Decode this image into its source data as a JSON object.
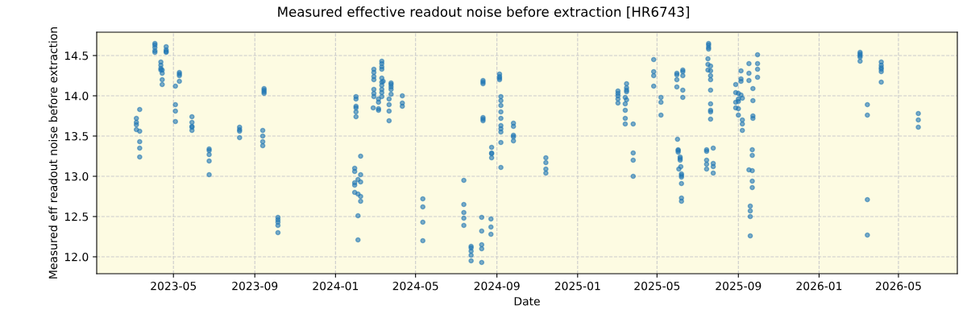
{
  "chart_data": {
    "type": "scatter",
    "title": "Measured effective readout noise before extraction [HR6743]",
    "xlabel": "Date",
    "ylabel": "Measured eff readout noise before extraction",
    "xlim": [
      "2023-01-05",
      "2026-07-29"
    ],
    "ylim": [
      11.79,
      14.79
    ],
    "xticks": [
      "2023-05",
      "2023-09",
      "2024-01",
      "2024-05",
      "2024-09",
      "2025-01",
      "2025-05",
      "2025-09",
      "2026-01",
      "2026-05"
    ],
    "yticks": [
      {
        "value": 12,
        "label": "12.0"
      },
      {
        "value": 12.5,
        "label": "12.5"
      },
      {
        "value": 13,
        "label": "13.0"
      },
      {
        "value": 13.5,
        "label": "13.5"
      },
      {
        "value": 14,
        "label": "14.0"
      },
      {
        "value": 14.5,
        "label": "14.5"
      }
    ],
    "grid": true,
    "marker": "circle",
    "series": [
      {
        "color": "#1f77b4",
        "x": [
          "2023-03-06",
          "2023-03-06",
          "2023-03-06",
          "2023-03-06",
          "2023-03-11",
          "2023-03-11",
          "2023-03-11",
          "2023-03-11",
          "2023-03-11",
          "2023-04-03",
          "2023-04-03",
          "2023-04-03",
          "2023-04-03",
          "2023-04-03",
          "2023-04-12",
          "2023-04-12",
          "2023-04-12",
          "2023-04-12",
          "2023-04-14",
          "2023-04-14",
          "2023-04-14",
          "2023-04-14",
          "2023-04-20",
          "2023-04-20",
          "2023-04-20",
          "2023-04-20",
          "2023-05-04",
          "2023-05-04",
          "2023-05-04",
          "2023-05-04",
          "2023-05-10",
          "2023-05-10",
          "2023-05-10",
          "2023-05-10",
          "2023-05-29",
          "2023-05-29",
          "2023-05-29",
          "2023-05-29",
          "2023-05-29",
          "2023-06-24",
          "2023-06-24",
          "2023-06-24",
          "2023-06-24",
          "2023-06-24",
          "2023-08-09",
          "2023-08-09",
          "2023-08-09",
          "2023-08-09",
          "2023-09-13",
          "2023-09-13",
          "2023-09-13",
          "2023-09-13",
          "2023-09-15",
          "2023-09-15",
          "2023-09-15",
          "2023-09-15",
          "2023-10-06",
          "2023-10-06",
          "2023-10-06",
          "2023-10-06",
          "2023-10-06",
          "2024-02-01",
          "2024-02-01",
          "2024-02-01",
          "2024-02-01",
          "2024-02-01",
          "2024-02-01",
          "2024-01-30",
          "2024-01-30",
          "2024-01-30",
          "2024-01-30",
          "2024-01-30",
          "2024-02-08",
          "2024-02-08",
          "2024-02-04",
          "2024-02-08",
          "2024-02-04",
          "2024-02-08",
          "2024-02-08",
          "2024-02-04",
          "2024-02-04",
          "2024-02-28",
          "2024-02-28",
          "2024-02-28",
          "2024-02-28",
          "2024-02-28",
          "2024-02-28",
          "2024-02-28",
          "2024-02-27",
          "2024-03-06",
          "2024-03-06",
          "2024-03-06",
          "2024-03-06",
          "2024-03-11",
          "2024-03-11",
          "2024-03-11",
          "2024-03-11",
          "2024-03-11",
          "2024-03-11",
          "2024-03-11",
          "2024-03-11",
          "2024-03-11",
          "2024-03-11",
          "2024-03-13",
          "2024-03-22",
          "2024-03-22",
          "2024-03-22",
          "2024-03-22",
          "2024-03-25",
          "2024-03-25",
          "2024-03-25",
          "2024-03-25",
          "2024-03-25",
          "2024-04-11",
          "2024-04-11",
          "2024-04-11",
          "2024-05-12",
          "2024-05-12",
          "2024-05-12",
          "2024-05-12",
          "2024-07-13",
          "2024-07-13",
          "2024-07-13",
          "2024-07-13",
          "2024-07-13",
          "2024-07-24",
          "2024-07-24",
          "2024-07-24",
          "2024-07-24",
          "2024-07-24",
          "2024-08-09",
          "2024-08-09",
          "2024-08-09",
          "2024-08-09",
          "2024-08-09",
          "2024-08-11",
          "2024-08-11",
          "2024-08-11",
          "2024-08-11",
          "2024-08-11",
          "2024-08-11",
          "2024-08-23",
          "2024-08-23",
          "2024-08-23",
          "2024-08-24",
          "2024-08-24",
          "2024-08-24",
          "2024-08-24",
          "2024-09-05",
          "2024-09-05",
          "2024-09-05",
          "2024-09-05",
          "2024-09-07",
          "2024-09-07",
          "2024-09-07",
          "2024-09-07",
          "2024-09-07",
          "2024-09-07",
          "2024-09-07",
          "2024-09-07",
          "2024-09-07",
          "2024-09-07",
          "2024-09-26",
          "2024-09-26",
          "2024-09-26",
          "2024-09-26",
          "2024-09-26",
          "2024-11-14",
          "2024-11-14",
          "2024-11-14",
          "2024-11-14",
          "2025-03-03",
          "2025-03-03",
          "2025-03-03",
          "2025-03-03",
          "2025-03-03",
          "2025-03-16",
          "2025-03-16",
          "2025-03-16",
          "2025-03-16",
          "2025-03-16",
          "2025-03-14",
          "2025-03-14",
          "2025-03-14",
          "2025-03-14",
          "2025-03-14",
          "2025-03-26",
          "2025-03-26",
          "2025-03-26",
          "2025-03-26",
          "2025-04-26",
          "2025-04-26",
          "2025-04-26",
          "2025-04-26",
          "2025-05-07",
          "2025-05-07",
          "2025-05-07",
          "2025-05-31",
          "2025-05-31",
          "2025-05-31",
          "2025-05-31",
          "2025-06-09",
          "2025-06-09",
          "2025-06-09",
          "2025-06-09",
          "2025-06-09",
          "2025-06-01",
          "2025-06-02",
          "2025-06-02",
          "2025-06-02",
          "2025-06-05",
          "2025-06-05",
          "2025-06-05",
          "2025-06-06",
          "2025-06-03",
          "2025-06-07",
          "2025-06-07",
          "2025-06-07",
          "2025-06-07",
          "2025-06-07",
          "2025-06-07",
          "2025-07-18",
          "2025-07-18",
          "2025-07-18",
          "2025-07-18",
          "2025-07-17",
          "2025-07-17",
          "2025-07-17",
          "2025-07-21",
          "2025-07-21",
          "2025-07-21",
          "2025-07-21",
          "2025-07-21",
          "2025-07-21",
          "2025-07-21",
          "2025-07-21",
          "2025-07-21",
          "2025-07-15",
          "2025-07-15",
          "2025-07-15",
          "2025-07-15",
          "2025-07-15",
          "2025-07-25",
          "2025-07-25",
          "2025-07-25",
          "2025-07-25",
          "2025-08-28",
          "2025-08-28",
          "2025-08-28",
          "2025-08-28",
          "2025-09-01",
          "2025-09-01",
          "2025-09-01",
          "2025-09-01",
          "2025-09-01",
          "2025-09-05",
          "2025-09-05",
          "2025-09-05",
          "2025-09-05",
          "2025-09-07",
          "2025-09-07",
          "2025-09-07",
          "2025-09-07",
          "2025-09-17",
          "2025-09-17",
          "2025-09-17",
          "2025-09-17",
          "2025-09-22",
          "2025-09-22",
          "2025-09-22",
          "2025-09-22",
          "2025-09-22",
          "2025-09-19",
          "2025-09-19",
          "2025-09-19",
          "2025-09-19",
          "2025-09-23",
          "2025-09-23",
          "2025-09-23",
          "2025-09-23",
          "2025-09-30",
          "2025-09-30",
          "2025-09-30",
          "2025-09-30",
          "2026-03-04",
          "2026-03-04",
          "2026-03-04",
          "2026-03-04",
          "2026-03-04",
          "2026-03-15",
          "2026-03-15",
          "2026-03-15",
          "2026-03-15",
          "2026-04-05",
          "2026-04-05",
          "2026-04-05",
          "2026-04-05",
          "2026-04-05",
          "2026-04-05",
          "2026-05-31",
          "2026-05-31",
          "2026-05-31"
        ],
        "values": [
          13.72,
          13.67,
          13.64,
          13.58,
          13.83,
          13.56,
          13.43,
          13.35,
          13.24,
          14.65,
          14.63,
          14.6,
          14.56,
          14.54,
          14.42,
          14.38,
          14.34,
          14.32,
          14.32,
          14.28,
          14.2,
          14.14,
          14.61,
          14.57,
          14.55,
          14.54,
          14.12,
          13.89,
          13.81,
          13.68,
          14.29,
          14.27,
          14.25,
          14.18,
          13.74,
          13.67,
          13.62,
          13.61,
          13.57,
          13.34,
          13.32,
          13.27,
          13.19,
          13.02,
          13.61,
          13.58,
          13.56,
          13.48,
          13.57,
          13.5,
          13.43,
          13.38,
          14.09,
          14.07,
          14.05,
          14.03,
          12.49,
          12.46,
          12.43,
          12.39,
          12.3,
          13.99,
          13.96,
          13.87,
          13.85,
          13.8,
          13.74,
          13.1,
          13.06,
          12.92,
          12.89,
          12.8,
          13.25,
          13.02,
          12.96,
          12.93,
          12.78,
          12.75,
          12.69,
          12.51,
          12.21,
          14.33,
          14.29,
          14.24,
          14.2,
          14.08,
          14.03,
          13.99,
          13.85,
          13.96,
          13.92,
          13.84,
          13.82,
          14.43,
          14.4,
          14.36,
          14.33,
          14.22,
          14.17,
          14.13,
          14.08,
          14.04,
          13.99,
          14.18,
          13.96,
          13.89,
          13.81,
          13.69,
          14.16,
          14.14,
          14.11,
          14.08,
          14.02,
          14.0,
          13.91,
          13.87,
          12.72,
          12.62,
          12.43,
          12.2,
          12.95,
          12.65,
          12.55,
          12.48,
          12.39,
          12.13,
          12.11,
          12.07,
          12.02,
          11.95,
          12.49,
          12.32,
          12.15,
          12.1,
          11.93,
          14.19,
          14.17,
          14.15,
          13.73,
          13.71,
          13.69,
          12.47,
          12.37,
          12.28,
          13.36,
          13.29,
          13.28,
          13.23,
          14.27,
          14.24,
          14.22,
          14.2,
          13.99,
          13.94,
          13.88,
          13.8,
          13.72,
          13.63,
          13.59,
          13.55,
          13.42,
          13.11,
          13.66,
          13.62,
          13.51,
          13.49,
          13.44,
          13.23,
          13.17,
          13.09,
          13.04,
          14.06,
          14.03,
          14.0,
          13.96,
          13.91,
          14.15,
          14.1,
          14.07,
          14.05,
          13.95,
          13.98,
          13.9,
          13.82,
          13.72,
          13.65,
          13.65,
          13.29,
          13.2,
          13.0,
          14.45,
          14.3,
          14.25,
          14.12,
          13.98,
          13.92,
          13.76,
          14.28,
          14.26,
          14.2,
          14.11,
          14.32,
          14.3,
          14.25,
          14.07,
          13.98,
          13.46,
          13.33,
          13.32,
          13.3,
          13.24,
          13.22,
          13.2,
          13.12,
          13.09,
          13.03,
          13.01,
          12.99,
          12.91,
          12.73,
          12.69,
          14.65,
          14.63,
          14.6,
          14.58,
          14.46,
          14.39,
          14.32,
          14.37,
          14.31,
          14.25,
          14.2,
          14.07,
          13.9,
          13.82,
          13.8,
          13.71,
          13.33,
          13.31,
          13.2,
          13.15,
          13.09,
          13.35,
          13.16,
          13.12,
          13.04,
          14.14,
          14.04,
          13.92,
          13.85,
          14.03,
          13.96,
          13.93,
          13.84,
          13.76,
          14.31,
          14.21,
          14.18,
          14.01,
          13.97,
          13.7,
          13.65,
          13.57,
          14.4,
          14.28,
          14.19,
          13.08,
          13.33,
          13.26,
          13.07,
          12.94,
          12.86,
          12.63,
          12.57,
          12.5,
          12.26,
          14.09,
          13.94,
          13.75,
          13.72,
          14.51,
          14.4,
          14.33,
          14.23,
          14.54,
          14.52,
          14.5,
          14.48,
          14.43,
          13.89,
          13.76,
          12.71,
          12.27,
          14.42,
          14.38,
          14.35,
          14.33,
          14.3,
          14.17,
          13.78,
          13.7,
          13.61
        ]
      }
    ]
  }
}
